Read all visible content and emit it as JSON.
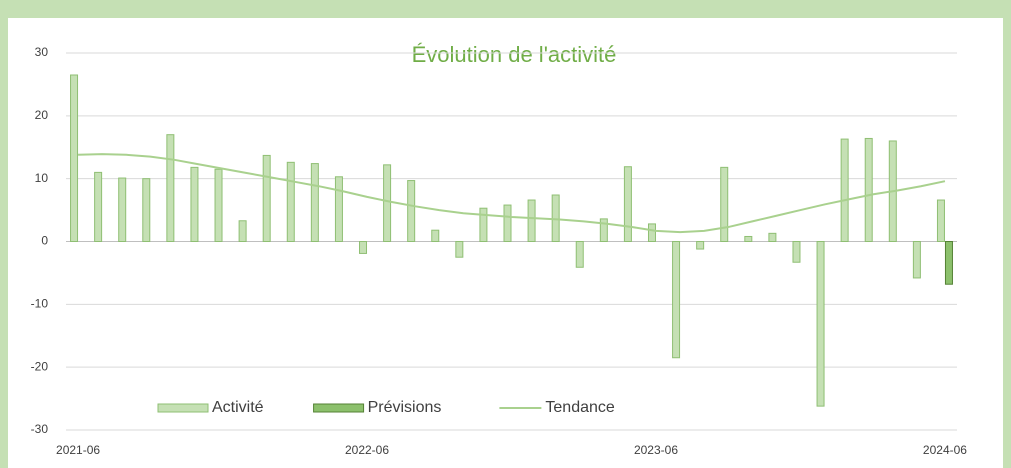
{
  "chart_data": {
    "type": "bar",
    "title": "Évolution de l'activité",
    "title_color": "#70ad47",
    "categories": [
      "2021-06",
      null,
      null,
      null,
      null,
      null,
      null,
      null,
      null,
      null,
      null,
      null,
      "2022-06",
      null,
      null,
      null,
      null,
      null,
      null,
      null,
      null,
      null,
      null,
      null,
      "2023-06",
      null,
      null,
      null,
      null,
      null,
      null,
      null,
      null,
      null,
      null,
      null,
      "2024-06"
    ],
    "series": [
      {
        "name": "Activité",
        "type": "bar",
        "color": "#c5e0b4",
        "edge": "#8fbf73",
        "values": [
          26.5,
          11,
          10.1,
          10,
          17,
          11.8,
          11.5,
          3.3,
          13.7,
          12.6,
          12.4,
          10.3,
          -1.9,
          12.2,
          9.7,
          1.8,
          -2.5,
          5.3,
          5.8,
          6.6,
          7.4,
          -4.1,
          3.6,
          11.9,
          2.8,
          -18.5,
          -1.2,
          11.8,
          0.8,
          1.3,
          -3.3,
          -26.2,
          16.3,
          16.4,
          16,
          -5.8,
          6.6
        ]
      },
      {
        "name": "Prévisions",
        "type": "bar",
        "color": "#8cc06c",
        "edge": "#548235",
        "values": [
          null,
          null,
          null,
          null,
          null,
          null,
          null,
          null,
          null,
          null,
          null,
          null,
          null,
          null,
          null,
          null,
          null,
          null,
          null,
          null,
          null,
          null,
          null,
          null,
          null,
          null,
          null,
          null,
          null,
          null,
          null,
          null,
          null,
          null,
          null,
          null,
          -6.8
        ]
      },
      {
        "name": "Tendance",
        "type": "line",
        "color": "#a9d18e",
        "values": [
          13.8,
          13.9,
          13.8,
          13.5,
          13.0,
          12.3,
          11.6,
          10.9,
          10.2,
          9.5,
          8.8,
          8.0,
          7.1,
          6.3,
          5.6,
          5.0,
          4.5,
          4.2,
          3.9,
          3.7,
          3.5,
          3.2,
          2.8,
          2.3,
          1.7,
          1.5,
          1.7,
          2.3,
          3.2,
          4.1,
          5.0,
          5.9,
          6.7,
          7.5,
          8.1,
          8.8,
          9.6
        ]
      }
    ],
    "ylim": [
      -30,
      30
    ],
    "yticks": [
      -30,
      -20,
      -10,
      0,
      10,
      20,
      30
    ],
    "grid": true,
    "legend": "bottom"
  }
}
